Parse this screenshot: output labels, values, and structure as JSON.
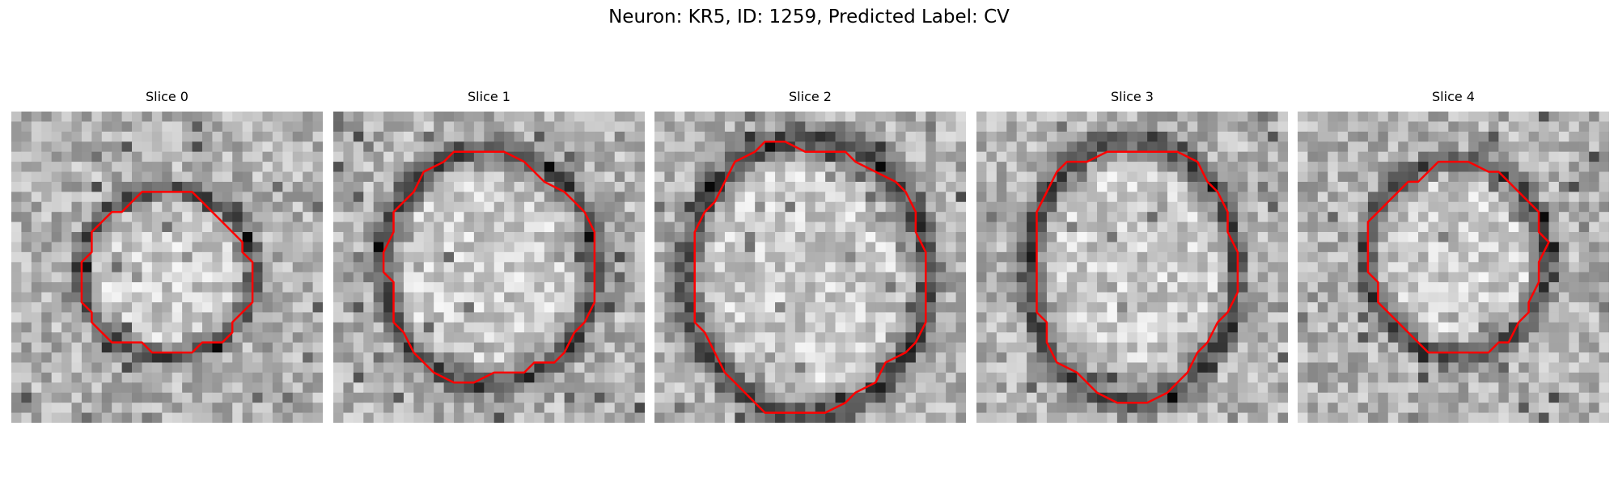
{
  "figure": {
    "title": "Neuron: KR5, ID: 1259, Predicted Label: CV"
  },
  "colors": {
    "contour": "#ff0000",
    "background": "#ffffff"
  },
  "panels": [
    {
      "label": "Slice 0"
    },
    {
      "label": "Slice 1"
    },
    {
      "label": "Slice 2"
    },
    {
      "label": "Slice 3"
    },
    {
      "label": "Slice 4"
    }
  ]
}
